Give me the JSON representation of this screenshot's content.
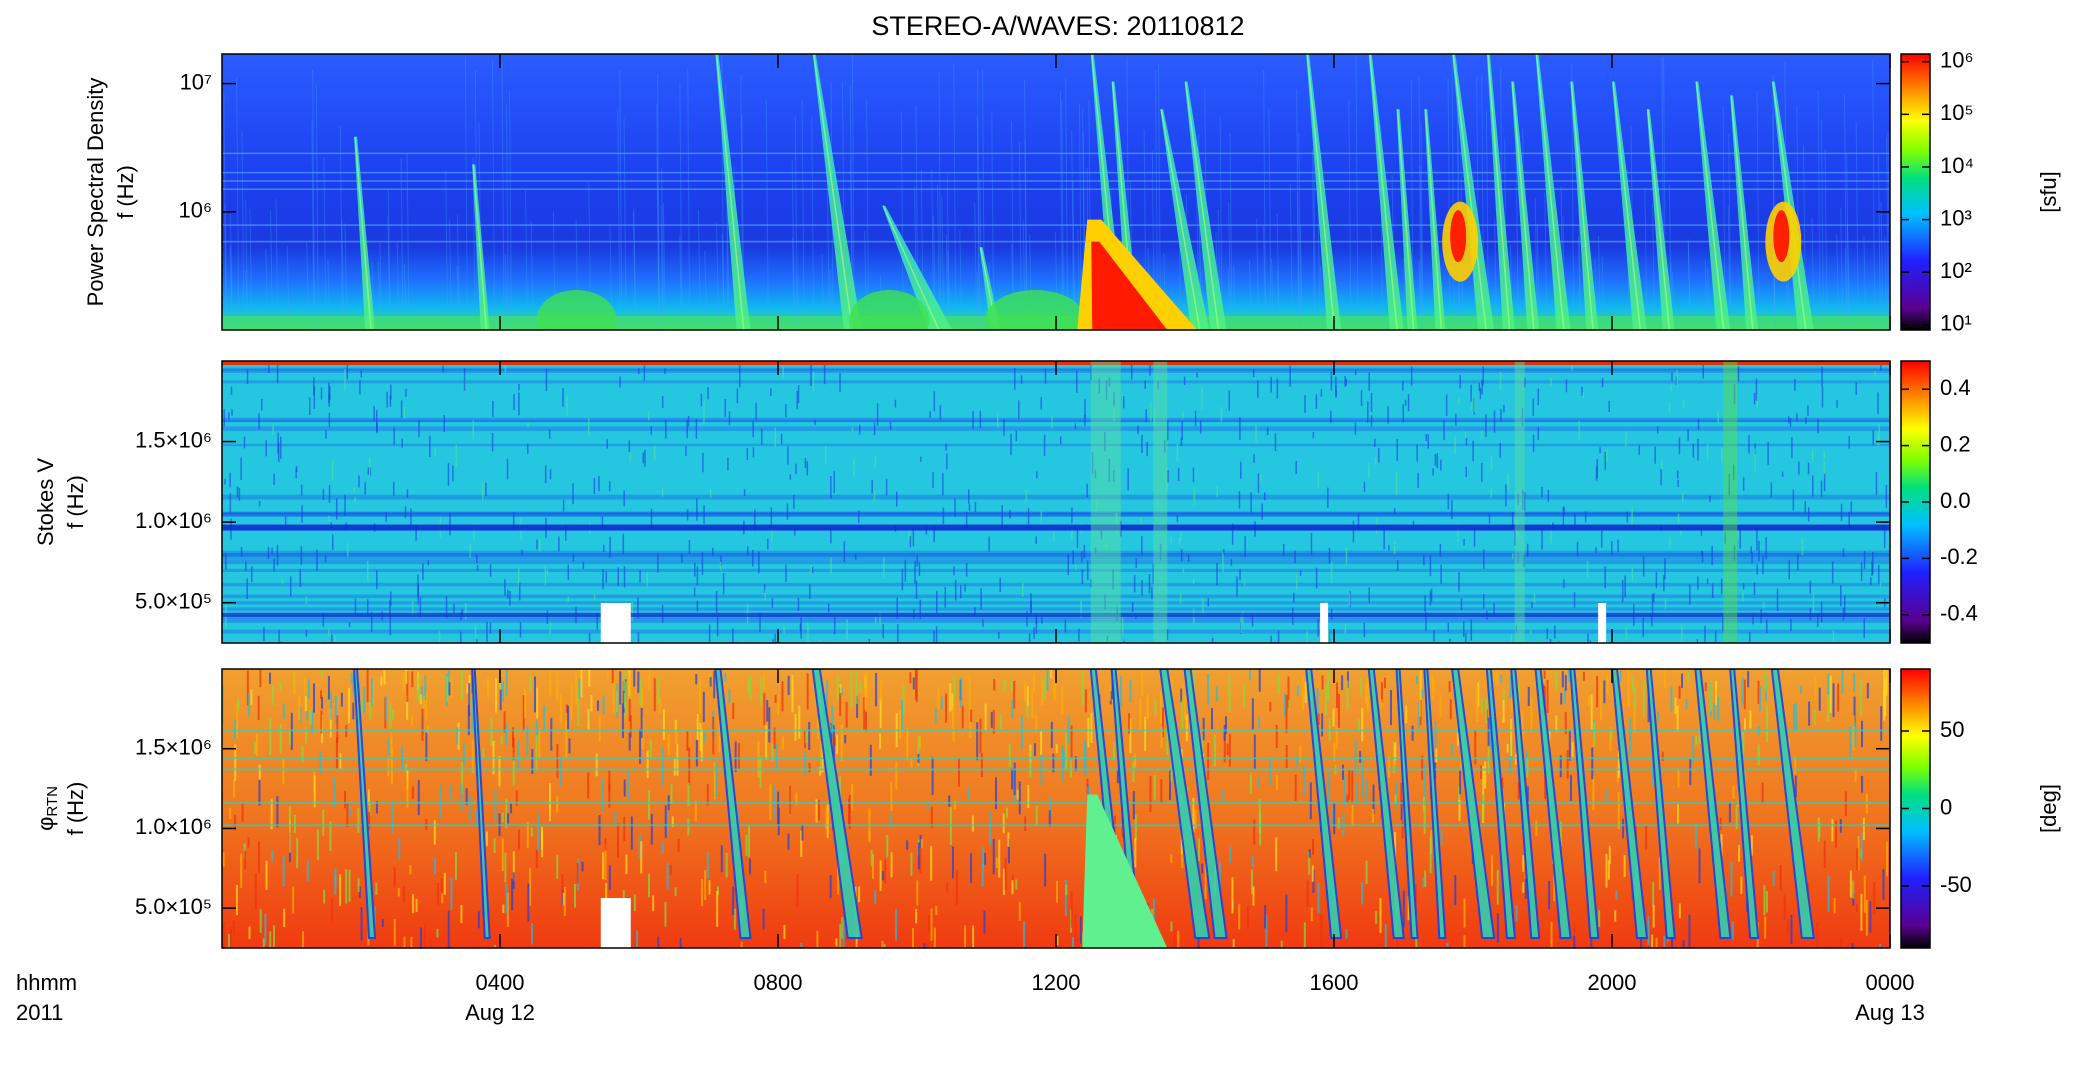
{
  "title": "STEREO-A/WAVES: 20110812",
  "x_axis_label": [
    "hhmm",
    "2011"
  ],
  "chart_data": [
    {
      "type": "spectrogram",
      "y_label": [
        "Power Spectral Density",
        "f (Hz)"
      ],
      "xlim": [
        0,
        24
      ],
      "ylim": [
        120000,
        17000000
      ],
      "y_log": true,
      "yticks": [
        {
          "value": 1000000,
          "label": "10⁶"
        },
        {
          "value": 10000000,
          "label": "10⁷"
        }
      ],
      "colorbar": {
        "label": "[sfu]",
        "log": true,
        "clim": [
          8,
          1400000
        ],
        "ticks": [
          {
            "value": 10,
            "label": "10¹"
          },
          {
            "value": 100,
            "label": "10²"
          },
          {
            "value": 1000,
            "label": "10³"
          },
          {
            "value": 10000,
            "label": "10⁴"
          },
          {
            "value": 100000,
            "label": "10⁵"
          },
          {
            "value": 1000000,
            "label": "10⁶"
          }
        ]
      }
    },
    {
      "type": "spectrogram",
      "y_label": [
        "Stokes V",
        "f (Hz)"
      ],
      "xlim": [
        0,
        24
      ],
      "ylim": [
        250000,
        2000000
      ],
      "y_log": false,
      "yticks": [
        {
          "value": 500000,
          "label": "5.0×10⁵"
        },
        {
          "value": 1000000,
          "label": "1.0×10⁶"
        },
        {
          "value": 1500000,
          "label": "1.5×10⁶"
        }
      ],
      "colorbar": {
        "log": false,
        "clim": [
          -0.5,
          0.5
        ],
        "ticks": [
          -0.4,
          -0.2,
          {
            "value": 0,
            "label": "0.0"
          },
          0.2,
          0.4
        ]
      }
    },
    {
      "type": "spectrogram",
      "y_label_symbol": "φ",
      "y_label_subscript": "RTN",
      "y_label": "f (Hz)",
      "xlim": [
        0,
        24
      ],
      "ylim": [
        250000,
        2000000
      ],
      "y_log": false,
      "yticks": [
        {
          "value": 500000,
          "label": "5.0×10⁵"
        },
        {
          "value": 1000000,
          "label": "1.0×10⁶"
        },
        {
          "value": 1500000,
          "label": "1.5×10⁶"
        }
      ],
      "xticks": [
        {
          "value": 4,
          "label": "0400"
        },
        {
          "value": 8,
          "label": "0800"
        },
        {
          "value": 12,
          "label": "1200"
        },
        {
          "value": 16,
          "label": "1600"
        },
        {
          "value": 20,
          "label": "2000"
        },
        {
          "value": 24,
          "label": "0000"
        }
      ],
      "x_date_labels": [
        {
          "value": 4,
          "label": "Aug 12"
        },
        {
          "value": 24,
          "label": "Aug 13"
        }
      ],
      "colorbar": {
        "label": "[deg]",
        "log": false,
        "clim": [
          -90,
          90
        ],
        "ticks": [
          -50,
          0,
          50
        ]
      }
    }
  ]
}
